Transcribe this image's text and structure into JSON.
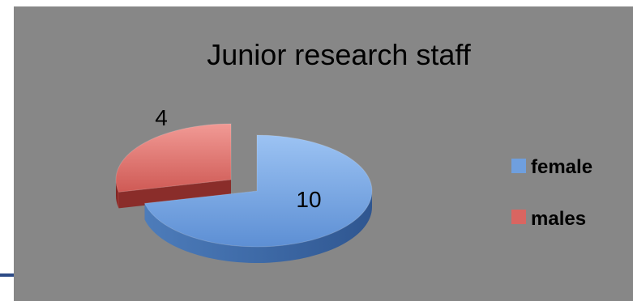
{
  "chart_data": {
    "type": "pie",
    "title": "Junior research staff",
    "style": "3d-exploded",
    "categories": [
      "female",
      "males"
    ],
    "values": [
      10,
      4
    ],
    "colors": [
      "#6f9fde",
      "#d96561"
    ],
    "data_labels": [
      "10",
      "4"
    ],
    "legend": {
      "placement": "right",
      "entries": [
        "female",
        "males"
      ]
    }
  }
}
